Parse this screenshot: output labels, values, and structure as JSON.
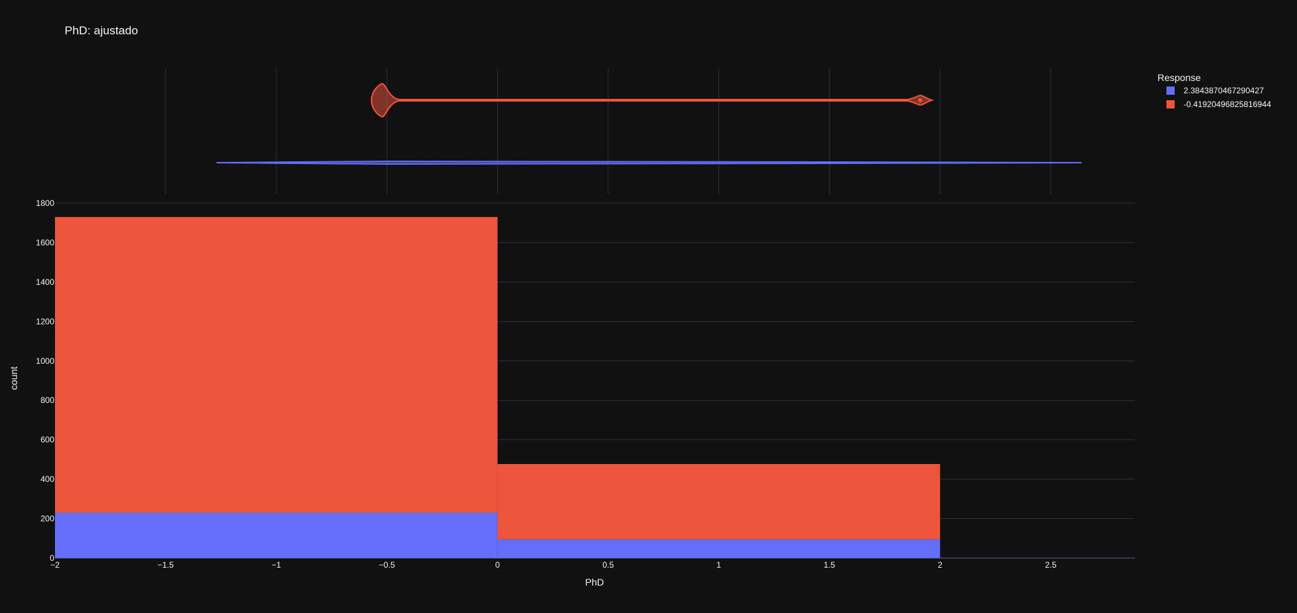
{
  "chart_data": {
    "type": "bar",
    "title": "PhD: ajustado",
    "xlabel": "PhD",
    "ylabel": "count",
    "xlim": [
      -2,
      2.88
    ],
    "ylim": [
      0,
      1800
    ],
    "x_ticks": [
      -2,
      -1.5,
      -1,
      -0.5,
      0,
      0.5,
      1,
      1.5,
      2,
      2.5
    ],
    "x_tick_labels": [
      "−2",
      "−1.5",
      "−1",
      "−0.5",
      "0",
      "0.5",
      "1",
      "1.5",
      "2",
      "2.5"
    ],
    "y_ticks": [
      0,
      200,
      400,
      600,
      800,
      1000,
      1200,
      1400,
      1600,
      1800
    ],
    "barmode": "stack",
    "bins": [
      [
        -2,
        0
      ],
      [
        0,
        2
      ]
    ],
    "legend": {
      "title": "Response",
      "position": "top-right"
    },
    "series": [
      {
        "name": "2.3843870467290427",
        "color": "#636efa",
        "values": [
          230,
          95
        ]
      },
      {
        "name": "-0.41920496825816944",
        "color": "#ef553b",
        "values": [
          1500,
          382
        ]
      }
    ],
    "marginal": {
      "type": "violin",
      "series": [
        {
          "name": "-0.41920496825816944",
          "color": "#ef553b",
          "min": -0.52,
          "max": 1.91,
          "peaks": [
            -0.52,
            1.91
          ]
        },
        {
          "name": "2.3843870467290427",
          "color": "#636efa",
          "min": -1.27,
          "max": 2.64,
          "peaks": [
            -0.5,
            1.91
          ]
        }
      ]
    }
  }
}
